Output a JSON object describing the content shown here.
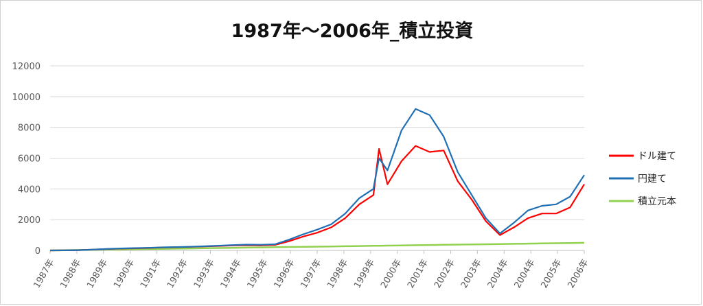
{
  "chart_data": {
    "type": "line",
    "title": "1987年～2006年_積立投資",
    "xlabel": "",
    "ylabel": "",
    "ylim": [
      0,
      12000
    ],
    "yticks": [
      0,
      2000,
      4000,
      6000,
      8000,
      10000,
      12000
    ],
    "xticks": [
      "1987年",
      "1988年",
      "1989年",
      "1990年",
      "1991年",
      "1992年",
      "1993年",
      "1994年",
      "1995年",
      "1996年",
      "1997年",
      "1998年",
      "1999年",
      "2000年",
      "2001年",
      "2002年",
      "2003年",
      "2004年",
      "2004年",
      "2005年",
      "2006年"
    ],
    "grid": true,
    "legend_position": "right",
    "x": [
      1987.0,
      1987.5,
      1988.0,
      1988.5,
      1989.0,
      1989.5,
      1990.0,
      1990.5,
      1991.0,
      1991.5,
      1992.0,
      1992.5,
      1993.0,
      1993.5,
      1994.0,
      1994.5,
      1995.0,
      1995.5,
      1996.0,
      1996.5,
      1997.0,
      1997.5,
      1998.0,
      1998.5,
      1998.7,
      1999.0,
      1999.5,
      2000.0,
      2000.5,
      2001.0,
      2001.5,
      2002.0,
      2002.5,
      2003.0,
      2003.5,
      2004.0,
      2004.5,
      2005.0,
      2005.5,
      2006.0
    ],
    "series": [
      {
        "name": "ドル建て",
        "color": "#ff0000",
        "values": [
          0,
          5,
          20,
          50,
          90,
          120,
          140,
          160,
          190,
          210,
          230,
          260,
          290,
          320,
          340,
          330,
          360,
          600,
          900,
          1150,
          1500,
          2100,
          3000,
          3600,
          6600,
          4300,
          5800,
          6800,
          6400,
          6500,
          4500,
          3300,
          1900,
          1000,
          1500,
          2100,
          2400,
          2400,
          2800,
          4300
        ]
      },
      {
        "name": "円建て",
        "color": "#1f6fb4",
        "values": [
          0,
          5,
          20,
          50,
          95,
          130,
          150,
          170,
          200,
          220,
          240,
          270,
          310,
          350,
          380,
          370,
          400,
          700,
          1050,
          1350,
          1700,
          2400,
          3400,
          4000,
          6000,
          5200,
          7800,
          9200,
          8800,
          7400,
          5100,
          3600,
          2100,
          1100,
          1800,
          2600,
          2900,
          3000,
          3500,
          4900
        ]
      },
      {
        "name": "積立元本",
        "color": "#92d050",
        "values": [
          0,
          13,
          26,
          39,
          52,
          65,
          78,
          91,
          104,
          117,
          130,
          143,
          156,
          169,
          182,
          195,
          208,
          221,
          234,
          247,
          260,
          273,
          286,
          299,
          304,
          312,
          325,
          338,
          351,
          364,
          377,
          390,
          403,
          416,
          429,
          442,
          455,
          468,
          481,
          494
        ]
      }
    ]
  }
}
